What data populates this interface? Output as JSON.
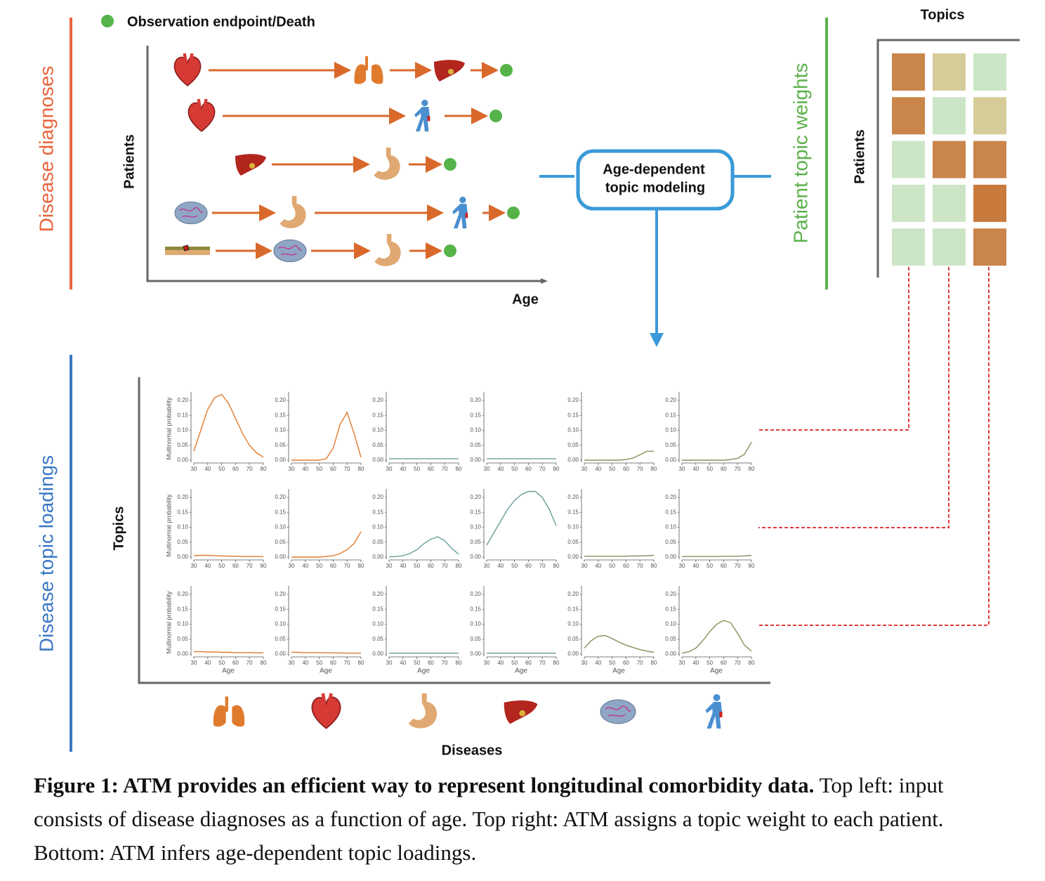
{
  "diagnoses": {
    "legend": "Observation endpoint/Death",
    "title": "Disease diagnoses",
    "ylabel": "Patients",
    "xlabel": "Age"
  },
  "model": {
    "lines": [
      "Age-dependent",
      "topic modeling"
    ]
  },
  "weights": {
    "title": "Patient topic weights",
    "xlabel": "Topics",
    "ylabel": "Patients",
    "cells": [
      [
        "#c9854a",
        "#d6cc9a",
        "#cde5c7"
      ],
      [
        "#c9854a",
        "#cde5c7",
        "#d6cc9a"
      ],
      [
        "#cde5c7",
        "#c9854a",
        "#c9854a"
      ],
      [
        "#cde5c7",
        "#cde5c7",
        "#c87a3c"
      ],
      [
        "#cde5c7",
        "#cde5c7",
        "#c9854a"
      ]
    ]
  },
  "loadings": {
    "title": "Disease topic loadings",
    "ylabel": "Topics",
    "xlabel": "Diseases",
    "panel": {
      "type": "line",
      "ylabel": "Multinomial probability",
      "xlabel": "Age",
      "x": [
        30,
        35,
        40,
        45,
        50,
        55,
        60,
        65,
        70,
        75,
        80
      ],
      "xlim": [
        30,
        80
      ],
      "ylim": [
        0,
        0.2
      ],
      "xticks": [
        30,
        40,
        50,
        60,
        70,
        80
      ],
      "yticks": [
        {
          "value": 0,
          "label": "0.00"
        },
        {
          "value": 0.05,
          "label": "0.05"
        },
        {
          "value": 0.1,
          "label": "0.10"
        },
        {
          "value": 0.15,
          "label": "0.15"
        },
        {
          "value": 0.2,
          "label": "0.20"
        }
      ],
      "colors": [
        "#e07b2e",
        "#e07b2e",
        "#6a9e9a",
        "#6a9e9a",
        "#8d8a5a",
        "#8d8a5a"
      ],
      "rows": [
        [
          [
            0.03,
            0.1,
            0.17,
            0.21,
            0.22,
            0.19,
            0.14,
            0.09,
            0.05,
            0.025,
            0.01
          ],
          [
            0,
            0,
            0,
            0,
            0,
            0.005,
            0.04,
            0.12,
            0.16,
            0.09,
            0.01
          ],
          [
            0.005,
            0.005,
            0.005,
            0.005,
            0.005,
            0.005,
            0.005,
            0.005,
            0.005,
            0.005,
            0.005
          ],
          [
            0.005,
            0.005,
            0.005,
            0.005,
            0.005,
            0.005,
            0.005,
            0.005,
            0.005,
            0.005,
            0.005
          ],
          [
            0,
            0,
            0,
            0,
            0,
            0,
            0.002,
            0.007,
            0.018,
            0.03,
            0.03
          ],
          [
            0,
            0,
            0,
            0,
            0,
            0,
            0,
            0.002,
            0.006,
            0.02,
            0.06
          ]
        ],
        [
          [
            0.005,
            0.006,
            0.006,
            0.005,
            0.004,
            0.003,
            0.003,
            0.002,
            0.002,
            0.002,
            0.002
          ],
          [
            0,
            0,
            0,
            0,
            0,
            0.002,
            0.005,
            0.012,
            0.025,
            0.045,
            0.085
          ],
          [
            0.001,
            0.002,
            0.005,
            0.012,
            0.025,
            0.045,
            0.06,
            0.068,
            0.055,
            0.03,
            0.01
          ],
          [
            0.04,
            0.08,
            0.12,
            0.16,
            0.19,
            0.21,
            0.22,
            0.22,
            0.2,
            0.16,
            0.105
          ],
          [
            0.003,
            0.003,
            0.003,
            0.003,
            0.003,
            0.003,
            0.003,
            0.004,
            0.004,
            0.005,
            0.006
          ],
          [
            0.002,
            0.002,
            0.002,
            0.002,
            0.002,
            0.002,
            0.003,
            0.003,
            0.003,
            0.004,
            0.006
          ]
        ],
        [
          [
            0.008,
            0.008,
            0.007,
            0.007,
            0.006,
            0.006,
            0.005,
            0.005,
            0.005,
            0.004,
            0.004
          ],
          [
            0.006,
            0.006,
            0.005,
            0.005,
            0.005,
            0.004,
            0.004,
            0.004,
            0.003,
            0.003,
            0.003
          ],
          [
            0.003,
            0.003,
            0.003,
            0.003,
            0.003,
            0.003,
            0.003,
            0.003,
            0.003,
            0.003,
            0.003
          ],
          [
            0.003,
            0.003,
            0.003,
            0.003,
            0.003,
            0.003,
            0.003,
            0.003,
            0.003,
            0.003,
            0.003
          ],
          [
            0.02,
            0.045,
            0.06,
            0.062,
            0.052,
            0.04,
            0.03,
            0.022,
            0.015,
            0.01,
            0.006
          ],
          [
            0.003,
            0.008,
            0.02,
            0.045,
            0.075,
            0.1,
            0.113,
            0.105,
            0.07,
            0.03,
            0.01
          ]
        ]
      ]
    }
  },
  "caption": {
    "label": "Figure 1: ATM provides an efficient way to represent longitudinal comorbidity data.",
    "text": "Top left: input consists of disease diagnoses as a function of age. Top right: ATM assigns a topic weight to each patient. Bottom: ATM infers age-dependent topic loadings."
  }
}
